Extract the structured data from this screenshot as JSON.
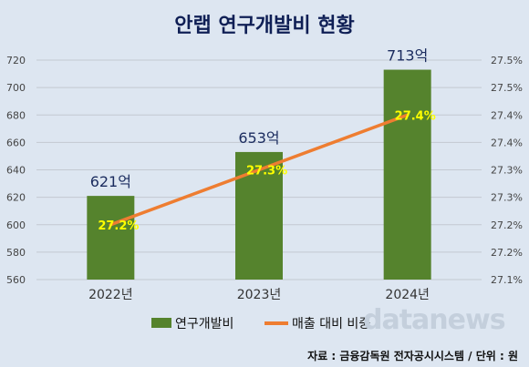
{
  "title": "안랩 연구개발비 현황",
  "source": "자료 : 금융감독원 전자공시시스템 / 단위 : 원",
  "watermark": "datanews",
  "chart_data": {
    "type": "bar",
    "categories": [
      "2022년",
      "2023년",
      "2024년"
    ],
    "ylim": [
      560,
      720
    ],
    "yticks": [
      "560",
      "580",
      "600",
      "620",
      "640",
      "660",
      "680",
      "700",
      "720"
    ],
    "y2lim": [
      27.1,
      27.5
    ],
    "y2ticks": [
      "27.1%",
      "27.2%",
      "27.2%",
      "27.3%",
      "27.3%",
      "27.4%",
      "27.4%",
      "27.5%",
      "27.5%"
    ],
    "grid": true,
    "legend_position": "bottom",
    "series": [
      {
        "name": "연구개발비",
        "type": "bar",
        "axis": "left",
        "values": [
          621,
          653,
          713
        ],
        "labels": [
          "621억",
          "653억",
          "713억"
        ],
        "color": "#55832d"
      },
      {
        "name": "매출 대비 비중",
        "type": "line",
        "axis": "right",
        "values": [
          27.2,
          27.3,
          27.4
        ],
        "labels": [
          "27.2%",
          "27.3%",
          "27.4%"
        ],
        "color": "#ee7d31",
        "label_color": "#ffff00"
      }
    ]
  }
}
